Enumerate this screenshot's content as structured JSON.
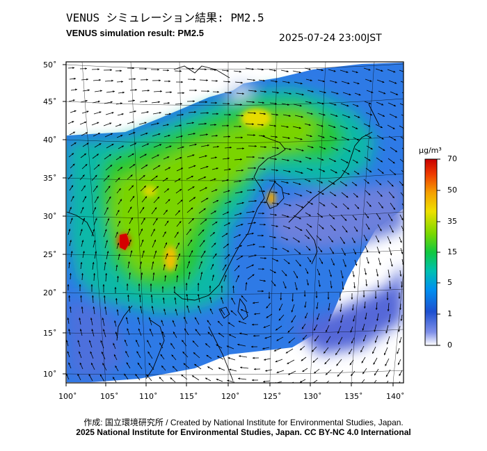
{
  "header": {
    "title_jp": "VENUS シミュレーション結果: PM2.5",
    "title_en": "VENUS simulation result: PM2.5",
    "timestamp": "2025-07-24 23:00JST"
  },
  "map": {
    "lat_labels": [
      "50˚",
      "45˚",
      "40˚",
      "35˚",
      "30˚",
      "25˚",
      "20˚",
      "15˚",
      "10˚"
    ],
    "lon_labels": [
      "100˚",
      "105˚",
      "110˚",
      "115˚",
      "120˚",
      "125˚",
      "130˚",
      "135˚",
      "140˚"
    ],
    "hotspots": [
      {
        "name": "south-china-hot",
        "lon": 106,
        "lat": 26.5,
        "pm": 70
      },
      {
        "name": "central-hot",
        "lon": 112.5,
        "lat": 25.5,
        "pm": 30
      },
      {
        "name": "north-plain-hot",
        "lon": 118,
        "lat": 41.5,
        "pm": 32
      },
      {
        "name": "korea-hot",
        "lon": 124.5,
        "lat": 32.5,
        "pm": 34
      }
    ]
  },
  "colorbar": {
    "unit": "μg/m³",
    "ticks": [
      "70",
      "50",
      "35",
      "15",
      "5",
      "1",
      "0"
    ],
    "colors": [
      "#d40000",
      "#f05a00",
      "#f5c400",
      "#a8e000",
      "#22c800",
      "#00c0a0",
      "#0095f0",
      "#1e5ad0",
      "#5a6ee0",
      "#ffffff"
    ]
  },
  "footer": {
    "credit_line1": "作成: 国立環境研究所 / Created by National Institute for Environmental Studies, Japan.",
    "credit_line2": "2025 National Institute for Environmental Studies, Japan. CC BY-NC 4.0 International"
  }
}
